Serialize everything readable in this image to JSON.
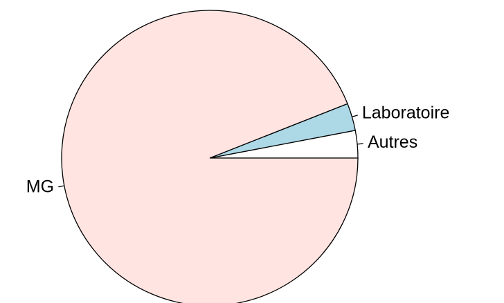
{
  "chart_data": {
    "type": "pie",
    "categories": [
      "Autres",
      "Laboratoire",
      "MG"
    ],
    "values": [
      3,
      3,
      94
    ],
    "colors": [
      "#ffffff",
      "#add8e6",
      "#ffe4e1"
    ]
  }
}
